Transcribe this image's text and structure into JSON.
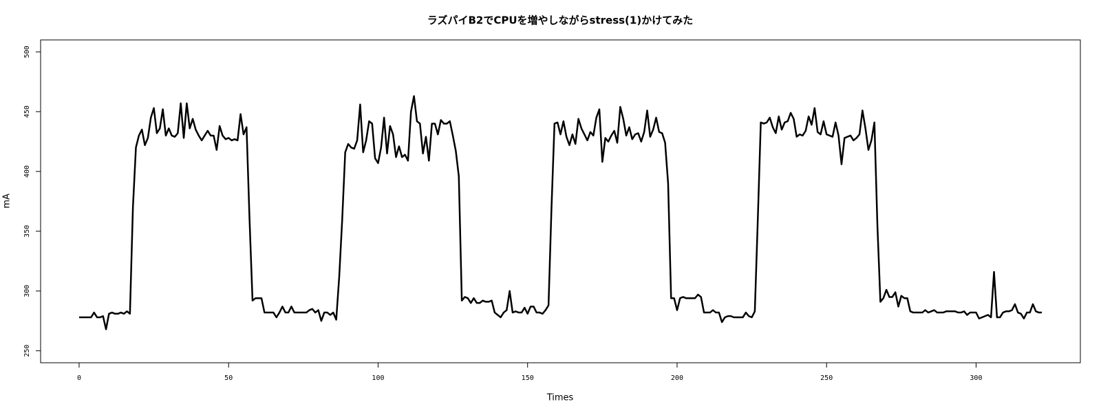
{
  "chart_data": {
    "type": "line",
    "title": "ラズパイB2でCPUを増やしながらstress(1)かけてみた",
    "x_label": "Times",
    "y_label": "mA",
    "color": "#000000",
    "xlim": [
      -12.88,
      334.88
    ],
    "ylim": [
      240,
      510
    ],
    "xticks": [
      0,
      50,
      100,
      150,
      200,
      250,
      300
    ],
    "yticks": [
      250,
      300,
      350,
      400,
      450,
      500
    ],
    "x": [
      0,
      1,
      2,
      3,
      4,
      5,
      6,
      7,
      8,
      9,
      10,
      11,
      12,
      13,
      14,
      15,
      16,
      17,
      18,
      19,
      20,
      21,
      22,
      23,
      24,
      25,
      26,
      27,
      28,
      29,
      30,
      31,
      32,
      33,
      34,
      35,
      36,
      37,
      38,
      39,
      40,
      41,
      42,
      43,
      44,
      45,
      46,
      47,
      48,
      49,
      50,
      51,
      52,
      53,
      54,
      55,
      56,
      57,
      58,
      59,
      60,
      61,
      62,
      63,
      64,
      65,
      66,
      67,
      68,
      69,
      70,
      71,
      72,
      73,
      74,
      75,
      76,
      77,
      78,
      79,
      80,
      81,
      82,
      83,
      84,
      85,
      86,
      87,
      88,
      89,
      90,
      91,
      92,
      93,
      94,
      95,
      96,
      97,
      98,
      99,
      100,
      101,
      102,
      103,
      104,
      105,
      106,
      107,
      108,
      109,
      110,
      111,
      112,
      113,
      114,
      115,
      116,
      117,
      118,
      119,
      120,
      121,
      122,
      123,
      124,
      125,
      126,
      127,
      128,
      129,
      130,
      131,
      132,
      133,
      134,
      135,
      136,
      137,
      138,
      139,
      140,
      141,
      142,
      143,
      144,
      145,
      146,
      147,
      148,
      149,
      150,
      151,
      152,
      153,
      154,
      155,
      156,
      157,
      158,
      159,
      160,
      161,
      162,
      163,
      164,
      165,
      166,
      167,
      168,
      169,
      170,
      171,
      172,
      173,
      174,
      175,
      176,
      177,
      178,
      179,
      180,
      181,
      182,
      183,
      184,
      185,
      186,
      187,
      188,
      189,
      190,
      191,
      192,
      193,
      194,
      195,
      196,
      197,
      198,
      199,
      200,
      201,
      202,
      203,
      204,
      205,
      206,
      207,
      208,
      209,
      210,
      211,
      212,
      213,
      214,
      215,
      216,
      217,
      218,
      219,
      220,
      221,
      222,
      223,
      224,
      225,
      226,
      227,
      228,
      229,
      230,
      231,
      232,
      233,
      234,
      235,
      236,
      237,
      238,
      239,
      240,
      241,
      242,
      243,
      244,
      245,
      246,
      247,
      248,
      249,
      250,
      251,
      252,
      253,
      254,
      255,
      256,
      257,
      258,
      259,
      260,
      261,
      262,
      263,
      264,
      265,
      266,
      267,
      268,
      269,
      270,
      271,
      272,
      273,
      274,
      275,
      276,
      277,
      278,
      279,
      280,
      281,
      282,
      283,
      284,
      285,
      286,
      287,
      288,
      289,
      290,
      291,
      292,
      293,
      294,
      295,
      296,
      297,
      298,
      299,
      300,
      301,
      302,
      303,
      304,
      305,
      306,
      307,
      308,
      309,
      310,
      311,
      312,
      313,
      314,
      315,
      316,
      317,
      318,
      319,
      320,
      321,
      322
    ],
    "values": [
      278,
      278,
      278,
      278,
      278,
      282,
      278,
      278,
      279,
      268,
      281,
      282,
      281,
      281,
      282,
      281,
      283,
      281,
      370,
      420,
      430,
      435,
      422,
      428,
      445,
      453,
      432,
      436,
      452,
      430,
      436,
      430,
      429,
      432,
      457,
      428,
      457,
      436,
      444,
      435,
      430,
      426,
      430,
      434,
      430,
      430,
      418,
      438,
      430,
      427,
      428,
      426,
      427,
      426,
      448,
      431,
      437,
      360,
      292,
      294,
      294,
      294,
      282,
      282,
      282,
      282,
      278,
      282,
      287,
      282,
      282,
      287,
      282,
      282,
      282,
      282,
      282,
      284,
      285,
      282,
      284,
      275,
      282,
      282,
      280,
      282,
      276,
      312,
      360,
      416,
      423,
      420,
      419,
      426,
      456,
      416,
      426,
      442,
      440,
      411,
      407,
      420,
      445,
      415,
      438,
      431,
      412,
      421,
      412,
      414,
      409,
      450,
      463,
      442,
      440,
      415,
      429,
      409,
      440,
      440,
      431,
      443,
      440,
      440,
      442,
      430,
      417,
      396,
      292,
      295,
      294,
      290,
      294,
      290,
      290,
      292,
      291,
      291,
      292,
      282,
      280,
      278,
      282,
      284,
      300,
      282,
      283,
      282,
      282,
      286,
      281,
      287,
      287,
      282,
      282,
      281,
      284,
      288,
      370,
      440,
      441,
      431,
      442,
      429,
      422,
      431,
      423,
      444,
      436,
      431,
      426,
      433,
      430,
      445,
      452,
      408,
      428,
      425,
      430,
      434,
      424,
      454,
      444,
      430,
      437,
      427,
      431,
      432,
      425,
      433,
      451,
      429,
      435,
      445,
      433,
      432,
      424,
      390,
      294,
      294,
      284,
      294,
      295,
      294,
      294,
      294,
      294,
      297,
      295,
      282,
      282,
      282,
      284,
      282,
      282,
      274,
      278,
      279,
      279,
      278,
      278,
      278,
      278,
      282,
      279,
      278,
      283,
      360,
      441,
      440,
      441,
      445,
      437,
      432,
      446,
      435,
      441,
      442,
      449,
      444,
      429,
      431,
      430,
      434,
      446,
      439,
      453,
      433,
      431,
      442,
      431,
      430,
      429,
      441,
      430,
      406,
      428,
      429,
      430,
      426,
      428,
      431,
      451,
      436,
      418,
      426,
      441,
      355,
      291,
      294,
      301,
      295,
      295,
      299,
      287,
      296,
      294,
      294,
      283,
      282,
      282,
      282,
      282,
      284,
      282,
      283,
      284,
      282,
      282,
      282,
      283,
      283,
      283,
      283,
      282,
      282,
      283,
      280,
      282,
      282,
      282,
      277,
      278,
      279,
      280,
      278,
      316,
      278,
      278,
      282,
      283,
      283,
      284,
      289,
      282,
      281,
      277,
      282,
      282,
      289,
      283,
      282,
      282
    ]
  }
}
